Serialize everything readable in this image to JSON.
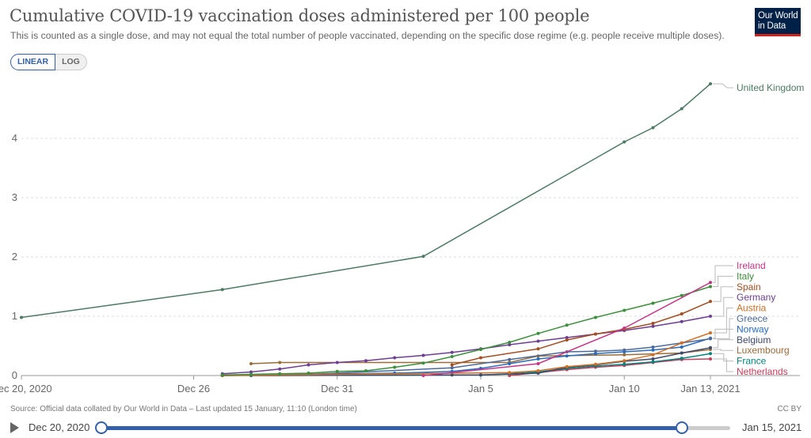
{
  "title": "Cumulative COVID-19 vaccination doses administered per 100 people",
  "subtitle": "This is counted as a single dose, and may not equal the total number of people vaccinated, depending on the specific dose regime (e.g. people receive multiple doses).",
  "logo": {
    "line1": "Our World",
    "line2": "in Data"
  },
  "scale_toggle": {
    "linear": "LINEAR",
    "log": "LOG",
    "active": "linear"
  },
  "source": "Source: Official data collated by Our World in Data – Last updated 15 January, 11:10 (London time)",
  "license": "CC BY",
  "timeline": {
    "start_label": "Dec 20, 2020",
    "end_label": "Jan 15, 2021"
  },
  "chart_data": {
    "type": "line",
    "title": "Cumulative COVID-19 vaccination doses administered per 100 people",
    "xlabel": "",
    "ylabel": "",
    "x_range": [
      "2020-12-20",
      "2021-01-13"
    ],
    "ylim": [
      0,
      5
    ],
    "y_ticks": [
      0,
      1,
      2,
      3,
      4
    ],
    "x_ticks": [
      {
        "date": "2020-12-20",
        "label": "Dec 20, 2020"
      },
      {
        "date": "2020-12-26",
        "label": "Dec 26"
      },
      {
        "date": "2020-12-31",
        "label": "Dec 31"
      },
      {
        "date": "2021-01-05",
        "label": "Jan 5"
      },
      {
        "date": "2021-01-10",
        "label": "Jan 10"
      },
      {
        "date": "2021-01-13",
        "label": "Jan 13, 2021"
      }
    ],
    "grid": "horizontal dashed",
    "legend": "right, end-of-line labels",
    "series": [
      {
        "name": "United Kingdom",
        "color": "#4c7a63",
        "points": [
          [
            "2020-12-20",
            0.98
          ],
          [
            "2020-12-27",
            1.45
          ],
          [
            "2021-01-03",
            2.01
          ],
          [
            "2021-01-10",
            3.94
          ],
          [
            "2021-01-11",
            4.18
          ],
          [
            "2021-01-12",
            4.5
          ],
          [
            "2021-01-13",
            4.92
          ]
        ]
      },
      {
        "name": "Ireland",
        "color": "#c53587",
        "points": [
          [
            "2021-01-03",
            0.0
          ],
          [
            "2021-01-07",
            0.2
          ],
          [
            "2021-01-10",
            0.8
          ],
          [
            "2021-01-13",
            1.57
          ]
        ]
      },
      {
        "name": "Italy",
        "color": "#3b8e3b",
        "points": [
          [
            "2020-12-27",
            0.01
          ],
          [
            "2020-12-28",
            0.02
          ],
          [
            "2020-12-29",
            0.03
          ],
          [
            "2020-12-30",
            0.04
          ],
          [
            "2020-12-31",
            0.07
          ],
          [
            "2021-01-01",
            0.08
          ],
          [
            "2021-01-02",
            0.14
          ],
          [
            "2021-01-03",
            0.21
          ],
          [
            "2021-01-04",
            0.32
          ],
          [
            "2021-01-05",
            0.44
          ],
          [
            "2021-01-06",
            0.56
          ],
          [
            "2021-01-07",
            0.71
          ],
          [
            "2021-01-08",
            0.85
          ],
          [
            "2021-01-09",
            0.98
          ],
          [
            "2021-01-10",
            1.1
          ],
          [
            "2021-01-11",
            1.22
          ],
          [
            "2021-01-12",
            1.35
          ],
          [
            "2021-01-13",
            1.5
          ]
        ]
      },
      {
        "name": "Spain",
        "color": "#a34d21",
        "points": [
          [
            "2021-01-04",
            0.18
          ],
          [
            "2021-01-05",
            0.3
          ],
          [
            "2021-01-07",
            0.45
          ],
          [
            "2021-01-08",
            0.6
          ],
          [
            "2021-01-09",
            0.7
          ],
          [
            "2021-01-10",
            0.78
          ],
          [
            "2021-01-11",
            0.88
          ],
          [
            "2021-01-12",
            1.04
          ],
          [
            "2021-01-13",
            1.25
          ]
        ]
      },
      {
        "name": "Germany",
        "color": "#6d3e91",
        "points": [
          [
            "2020-12-27",
            0.03
          ],
          [
            "2020-12-28",
            0.06
          ],
          [
            "2020-12-29",
            0.11
          ],
          [
            "2020-12-30",
            0.18
          ],
          [
            "2020-12-31",
            0.22
          ],
          [
            "2021-01-01",
            0.25
          ],
          [
            "2021-01-02",
            0.3
          ],
          [
            "2021-01-03",
            0.34
          ],
          [
            "2021-01-04",
            0.39
          ],
          [
            "2021-01-05",
            0.45
          ],
          [
            "2021-01-06",
            0.52
          ],
          [
            "2021-01-07",
            0.58
          ],
          [
            "2021-01-08",
            0.64
          ],
          [
            "2021-01-09",
            0.7
          ],
          [
            "2021-01-10",
            0.76
          ],
          [
            "2021-01-11",
            0.83
          ],
          [
            "2021-01-12",
            0.91
          ],
          [
            "2021-01-13",
            1.0
          ]
        ]
      },
      {
        "name": "Austria",
        "color": "#d06f24",
        "points": [
          [
            "2020-12-27",
            0.0
          ],
          [
            "2021-01-06",
            0.05
          ],
          [
            "2021-01-07",
            0.08
          ],
          [
            "2021-01-08",
            0.15
          ],
          [
            "2021-01-09",
            0.19
          ],
          [
            "2021-01-10",
            0.25
          ],
          [
            "2021-01-11",
            0.35
          ],
          [
            "2021-01-12",
            0.55
          ],
          [
            "2021-01-13",
            0.72
          ]
        ]
      },
      {
        "name": "Greece",
        "color": "#4c6a9c",
        "points": [
          [
            "2020-12-27",
            0.0
          ],
          [
            "2020-12-30",
            0.02
          ],
          [
            "2021-01-04",
            0.13
          ],
          [
            "2021-01-06",
            0.27
          ],
          [
            "2021-01-08",
            0.4
          ],
          [
            "2021-01-09",
            0.41
          ],
          [
            "2021-01-10",
            0.43
          ],
          [
            "2021-01-11",
            0.48
          ],
          [
            "2021-01-12",
            0.55
          ],
          [
            "2021-01-13",
            0.62
          ]
        ]
      },
      {
        "name": "Norway",
        "color": "#286bbb",
        "points": [
          [
            "2020-12-27",
            0.0
          ],
          [
            "2020-12-28",
            0.01
          ],
          [
            "2021-01-02",
            0.04
          ],
          [
            "2021-01-04",
            0.07
          ],
          [
            "2021-01-05",
            0.12
          ],
          [
            "2021-01-06",
            0.2
          ],
          [
            "2021-01-07",
            0.28
          ],
          [
            "2021-01-08",
            0.33
          ],
          [
            "2021-01-09",
            0.37
          ],
          [
            "2021-01-10",
            0.4
          ],
          [
            "2021-01-11",
            0.43
          ],
          [
            "2021-01-12",
            0.48
          ],
          [
            "2021-01-13",
            0.63
          ]
        ]
      },
      {
        "name": "Belgium",
        "color": "#3d4a6b",
        "points": [
          [
            "2020-12-28",
            0.0
          ],
          [
            "2021-01-04",
            0.01
          ],
          [
            "2021-01-05",
            0.01
          ],
          [
            "2021-01-07",
            0.04
          ],
          [
            "2021-01-08",
            0.14
          ],
          [
            "2021-01-09",
            0.18
          ],
          [
            "2021-01-10",
            0.24
          ],
          [
            "2021-01-11",
            0.28
          ],
          [
            "2021-01-12",
            0.38
          ],
          [
            "2021-01-13",
            0.47
          ]
        ]
      },
      {
        "name": "Luxembourg",
        "color": "#996d39",
        "points": [
          [
            "2020-12-28",
            0.2
          ],
          [
            "2020-12-29",
            0.22
          ],
          [
            "2021-01-06",
            0.22
          ],
          [
            "2021-01-07",
            0.33
          ],
          [
            "2021-01-10",
            0.35
          ],
          [
            "2021-01-12",
            0.38
          ],
          [
            "2021-01-13",
            0.44
          ]
        ]
      },
      {
        "name": "France",
        "color": "#00847e",
        "points": [
          [
            "2020-12-27",
            0.0
          ],
          [
            "2021-01-05",
            0.01
          ],
          [
            "2021-01-06",
            0.03
          ],
          [
            "2021-01-07",
            0.06
          ],
          [
            "2021-01-08",
            0.12
          ],
          [
            "2021-01-09",
            0.16
          ],
          [
            "2021-01-10",
            0.19
          ],
          [
            "2021-01-11",
            0.23
          ],
          [
            "2021-01-12",
            0.29
          ],
          [
            "2021-01-13",
            0.37
          ]
        ]
      },
      {
        "name": "Netherlands",
        "color": "#c93d5c",
        "points": [
          [
            "2021-01-06",
            0.0
          ],
          [
            "2021-01-07",
            0.05
          ],
          [
            "2021-01-08",
            0.1
          ],
          [
            "2021-01-09",
            0.14
          ],
          [
            "2021-01-10",
            0.17
          ],
          [
            "2021-01-11",
            0.22
          ],
          [
            "2021-01-12",
            0.27
          ],
          [
            "2021-01-13",
            0.28
          ]
        ]
      }
    ]
  }
}
